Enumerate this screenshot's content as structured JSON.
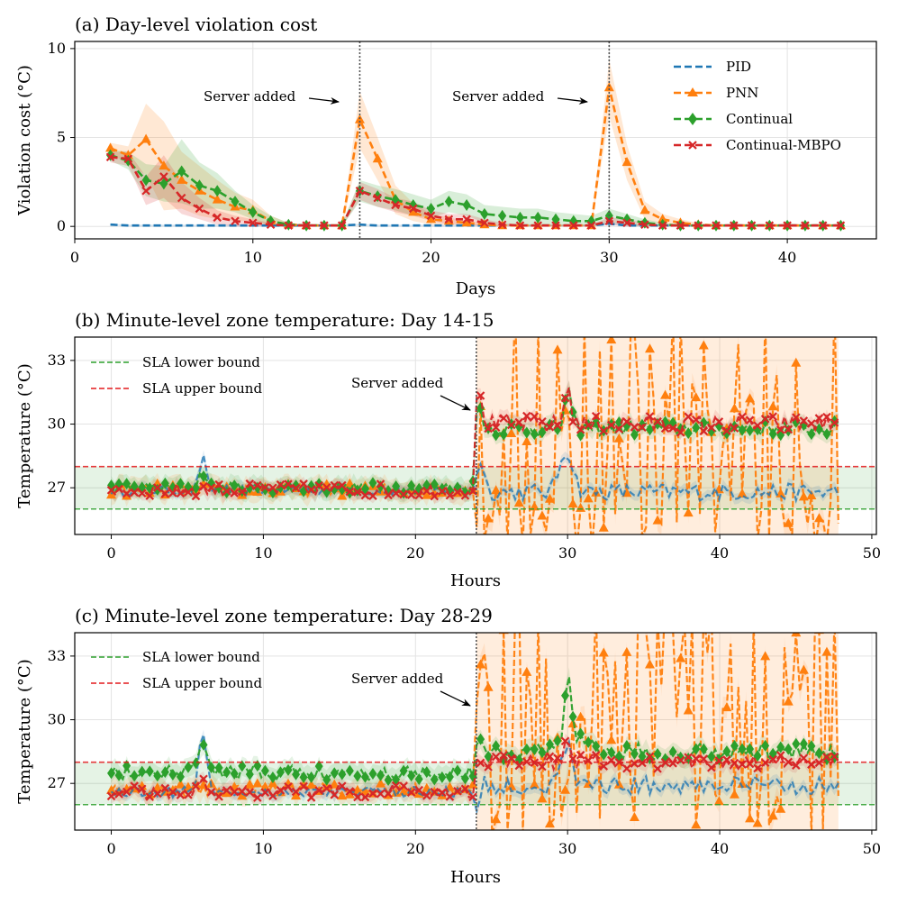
{
  "colors": {
    "PID": "#1f77b4",
    "PNN": "#ff7f0e",
    "Continual": "#2ca02c",
    "Continual-MBPO": "#d62728",
    "sla_lower": "#2ca02c",
    "sla_upper": "#e31a1c",
    "event_line": "#555555"
  },
  "chart_data": [
    {
      "id": "a",
      "type": "line",
      "title": "(a) Day-level violation cost",
      "xlabel": "Days",
      "ylabel": "Violation cost (°C)",
      "xlim": [
        0,
        45
      ],
      "ylim": [
        -0.7,
        10.4
      ],
      "xticks": [
        0,
        10,
        20,
        30,
        40
      ],
      "yticks": [
        0,
        5,
        10
      ],
      "legend_position": "top-right",
      "x": [
        2,
        3,
        4,
        5,
        6,
        7,
        8,
        9,
        10,
        11,
        12,
        13,
        14,
        15,
        16,
        17,
        18,
        19,
        20,
        21,
        22,
        23,
        24,
        25,
        26,
        27,
        28,
        29,
        30,
        31,
        32,
        33,
        34,
        35,
        36,
        37,
        38,
        39,
        40,
        41,
        42,
        43
      ],
      "series": [
        {
          "name": "PID",
          "marker": "none",
          "values": [
            0.1,
            0.05,
            0.05,
            0.05,
            0.05,
            0.05,
            0.05,
            0.05,
            0.05,
            0.05,
            0.05,
            0.05,
            0.05,
            0.05,
            0.1,
            0.05,
            0.05,
            0.05,
            0.05,
            0.05,
            0.05,
            0.05,
            0.05,
            0.05,
            0.05,
            0.05,
            0.05,
            0.05,
            0.15,
            0.05,
            0.05,
            0.05,
            0.05,
            0.05,
            0.05,
            0.05,
            0.05,
            0.05,
            0.05,
            0.05,
            0.05,
            0.05
          ],
          "band": [
            0.05,
            0.05,
            0.05,
            0.05,
            0.05,
            0.05,
            0.05,
            0.05,
            0.05,
            0.05,
            0.05,
            0.05,
            0.05,
            0.05,
            0.05,
            0.05,
            0.05,
            0.05,
            0.05,
            0.05,
            0.05,
            0.05,
            0.05,
            0.05,
            0.05,
            0.05,
            0.05,
            0.05,
            0.05,
            0.05,
            0.05,
            0.05,
            0.05,
            0.05,
            0.05,
            0.05,
            0.05,
            0.05,
            0.05,
            0.05,
            0.05,
            0.05
          ]
        },
        {
          "name": "PNN",
          "marker": "triangle",
          "values": [
            4.4,
            4.0,
            4.9,
            3.4,
            2.6,
            2.0,
            1.5,
            1.1,
            0.9,
            0.3,
            0.1,
            0.05,
            0.05,
            0.05,
            6.0,
            3.8,
            1.5,
            0.8,
            0.4,
            0.3,
            0.2,
            0.1,
            0.05,
            0.05,
            0.05,
            0.05,
            0.05,
            0.05,
            7.8,
            3.6,
            0.9,
            0.4,
            0.2,
            0.1,
            0.05,
            0.05,
            0.05,
            0.05,
            0.05,
            0.05,
            0.05,
            0.05
          ],
          "band": [
            0.3,
            0.5,
            2.0,
            2.5,
            1.6,
            1.4,
            1.1,
            0.8,
            0.6,
            0.3,
            0.1,
            0.05,
            0.05,
            0.05,
            1.6,
            1.2,
            0.8,
            0.5,
            0.3,
            0.2,
            0.1,
            0.1,
            0.05,
            0.05,
            0.05,
            0.05,
            0.05,
            0.05,
            1.6,
            1.0,
            0.5,
            0.3,
            0.2,
            0.1,
            0.05,
            0.05,
            0.05,
            0.05,
            0.05,
            0.05,
            0.05,
            0.05
          ]
        },
        {
          "name": "Continual",
          "marker": "diamond",
          "values": [
            4.0,
            3.7,
            2.6,
            2.4,
            3.1,
            2.3,
            2.0,
            1.4,
            0.8,
            0.3,
            0.1,
            0.05,
            0.05,
            0.05,
            2.0,
            1.7,
            1.5,
            1.2,
            1.0,
            1.4,
            1.2,
            0.7,
            0.6,
            0.5,
            0.5,
            0.4,
            0.3,
            0.3,
            0.6,
            0.4,
            0.2,
            0.1,
            0.05,
            0.05,
            0.05,
            0.05,
            0.05,
            0.05,
            0.05,
            0.05,
            0.05,
            0.05
          ],
          "band": [
            0.3,
            0.5,
            0.9,
            1.0,
            1.8,
            1.3,
            1.0,
            0.6,
            0.4,
            0.3,
            0.1,
            0.05,
            0.05,
            0.05,
            0.6,
            0.6,
            0.6,
            0.6,
            0.5,
            0.6,
            0.6,
            0.5,
            0.5,
            0.5,
            0.5,
            0.4,
            0.4,
            0.3,
            0.4,
            0.3,
            0.2,
            0.1,
            0.05,
            0.05,
            0.05,
            0.05,
            0.05,
            0.05,
            0.05,
            0.05,
            0.05,
            0.05
          ]
        },
        {
          "name": "Continual-MBPO",
          "marker": "x",
          "values": [
            3.9,
            3.8,
            2.0,
            2.8,
            1.6,
            1.0,
            0.5,
            0.3,
            0.2,
            0.1,
            0.05,
            0.05,
            0.05,
            0.05,
            2.0,
            1.6,
            1.2,
            1.0,
            0.6,
            0.4,
            0.4,
            0.2,
            0.1,
            0.05,
            0.05,
            0.05,
            0.05,
            0.05,
            0.3,
            0.2,
            0.1,
            0.05,
            0.05,
            0.05,
            0.05,
            0.05,
            0.05,
            0.05,
            0.05,
            0.05,
            0.05,
            0.05
          ],
          "band": [
            0.3,
            0.4,
            0.8,
            1.2,
            0.9,
            0.6,
            0.4,
            0.3,
            0.2,
            0.1,
            0.05,
            0.05,
            0.05,
            0.05,
            0.5,
            0.5,
            0.4,
            0.4,
            0.3,
            0.3,
            0.3,
            0.2,
            0.1,
            0.05,
            0.05,
            0.05,
            0.05,
            0.05,
            0.2,
            0.2,
            0.1,
            0.05,
            0.05,
            0.05,
            0.05,
            0.05,
            0.05,
            0.05,
            0.05,
            0.05,
            0.05,
            0.05
          ]
        }
      ],
      "vlines": [
        16,
        30
      ],
      "annotations": [
        {
          "text": "Server added",
          "x": 16,
          "y": 7.0
        },
        {
          "text": "Server added",
          "x": 30,
          "y": 7.0
        }
      ]
    },
    {
      "id": "b",
      "type": "line",
      "title": "(b) Minute-level zone temperature: Day 14-15",
      "xlabel": "Hours",
      "ylabel": "Temperature (°C)",
      "xlim": [
        -2.4,
        50.3
      ],
      "ylim": [
        24.8,
        34.1
      ],
      "xticks": [
        0,
        10,
        20,
        30,
        40,
        50
      ],
      "yticks": [
        27,
        30,
        33
      ],
      "sla_lower": 26.0,
      "sla_upper": 28.0,
      "sla_labels": [
        "SLA lower bound",
        "SLA upper bound"
      ],
      "legend_position": "top-left",
      "event_hour": 24,
      "annotation": "Server added",
      "annotation_y": 30.6
    },
    {
      "id": "c",
      "type": "line",
      "title": "(c) Minute-level zone temperature: Day 28-29",
      "xlabel": "Hours",
      "ylabel": "Temperature (°C)",
      "xlim": [
        -2.4,
        50.3
      ],
      "ylim": [
        24.8,
        34.1
      ],
      "xticks": [
        0,
        10,
        20,
        30,
        40,
        50
      ],
      "yticks": [
        27,
        30,
        33
      ],
      "sla_lower": 26.0,
      "sla_upper": 28.0,
      "sla_labels": [
        "SLA lower bound",
        "SLA upper bound"
      ],
      "legend_position": "top-left",
      "event_hour": 24,
      "annotation": "Server added",
      "annotation_y": 30.7
    }
  ]
}
